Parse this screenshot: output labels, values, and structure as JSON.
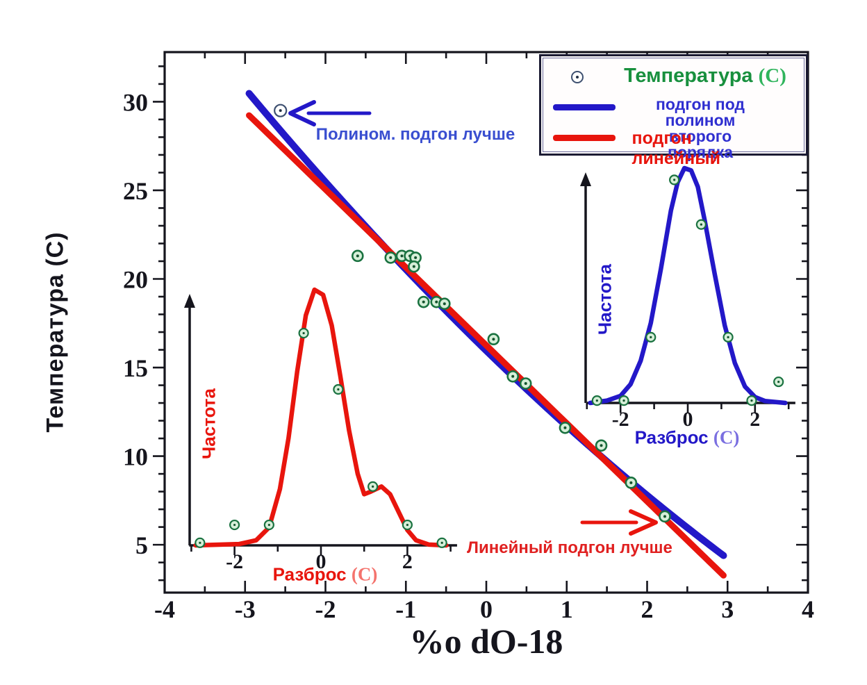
{
  "axes": {
    "xlabel": "%o dO-18",
    "ylabel": "Температура (C)"
  },
  "legend": {
    "temp_label": "Температура",
    "temp_unit": "(C)",
    "poly_label_line1": "подгон под полином",
    "poly_label_line2": "второго порядка",
    "linear_label": "подгон линейный"
  },
  "annotations": {
    "poly_better": "Полином. подгон лучше",
    "linear_better": "Линейный подгон лучше"
  },
  "colors": {
    "blue": "#2318c8",
    "red": "#e8150d",
    "green_text": "#18903e",
    "green_bright": "#2fb45c",
    "marker_fill": "#d6efd8",
    "marker_stroke": "#1a7240",
    "marker_dot": "#14532d",
    "open_marker_stroke": "#3e5070",
    "axis": "#15151d",
    "annotation_blue": "#3a4fd0",
    "annotation_red": "#e02020",
    "inset_unit_red": "#f4736d",
    "inset_unit_blue": "#7a6fe0"
  },
  "chart_data": {
    "type": "scatter",
    "title": "",
    "xlabel": "%o dO-18",
    "ylabel": "Температура (C)",
    "xlim": [
      -4,
      4
    ],
    "ylim": [
      2.3,
      32.8
    ],
    "x_ticks": [
      -4,
      -3,
      -2,
      -1,
      0,
      1,
      2,
      3,
      4
    ],
    "y_ticks": [
      5,
      10,
      15,
      20,
      25,
      30
    ],
    "grid": false,
    "legend_position": "top-right",
    "series": [
      {
        "name": "Температура (C)",
        "type": "scatter",
        "points": [
          [
            -2.56,
            29.5
          ],
          [
            -1.6,
            21.3
          ],
          [
            -1.19,
            21.2
          ],
          [
            -1.05,
            21.3
          ],
          [
            -0.95,
            21.3
          ],
          [
            -0.88,
            21.2
          ],
          [
            -0.9,
            20.7
          ],
          [
            -0.78,
            18.7
          ],
          [
            -0.62,
            18.7
          ],
          [
            -0.52,
            18.6
          ],
          [
            0.09,
            16.6
          ],
          [
            0.33,
            14.5
          ],
          [
            0.49,
            14.1
          ],
          [
            0.98,
            11.6
          ],
          [
            1.43,
            10.6
          ],
          [
            1.8,
            8.5
          ],
          [
            2.22,
            6.6
          ]
        ],
        "open_marker_indices": [
          0
        ]
      },
      {
        "name": "подгон под полином второго порядка",
        "type": "line",
        "fit": "poly2",
        "coeffs": [
          15.95,
          -4.42,
          0.17
        ],
        "x_range": [
          -2.95,
          2.95
        ]
      },
      {
        "name": "подгон линейный",
        "type": "line",
        "fit": "linear",
        "coeffs": [
          16.25,
          -4.4
        ],
        "x_range": [
          -2.95,
          2.95
        ]
      }
    ],
    "insets": [
      {
        "id": "linear-fit-residuals",
        "ylabel": "Частота",
        "xlabel": "Разброс",
        "xlabel_unit": "(C)",
        "x_ticks": [
          -2,
          0,
          2
        ],
        "curve": [
          [
            -2.9,
            0
          ],
          [
            -1.9,
            0.005
          ],
          [
            -1.5,
            0.02
          ],
          [
            -1.2,
            0.07
          ],
          [
            -0.95,
            0.22
          ],
          [
            -0.75,
            0.42
          ],
          [
            -0.55,
            0.68
          ],
          [
            -0.35,
            0.9
          ],
          [
            -0.15,
            1.0
          ],
          [
            0.05,
            0.98
          ],
          [
            0.25,
            0.86
          ],
          [
            0.45,
            0.66
          ],
          [
            0.65,
            0.45
          ],
          [
            0.85,
            0.28
          ],
          [
            1.0,
            0.2
          ],
          [
            1.15,
            0.21
          ],
          [
            1.4,
            0.23
          ],
          [
            1.6,
            0.2
          ],
          [
            1.8,
            0.13
          ],
          [
            2.0,
            0.06
          ],
          [
            2.2,
            0.02
          ],
          [
            2.5,
            0.003
          ],
          [
            2.9,
            0
          ]
        ],
        "points": [
          [
            -2.8,
            0.01
          ],
          [
            -2.0,
            0.08
          ],
          [
            -1.2,
            0.08
          ],
          [
            -0.4,
            0.83
          ],
          [
            0.4,
            0.61
          ],
          [
            1.2,
            0.23
          ],
          [
            2.0,
            0.08
          ],
          [
            2.8,
            0.01
          ]
        ]
      },
      {
        "id": "poly-fit-residuals",
        "ylabel": "Частота",
        "xlabel": "Разброс",
        "xlabel_unit": "(C)",
        "x_ticks": [
          -2,
          0,
          2
        ],
        "curve": [
          [
            -2.9,
            0
          ],
          [
            -2.4,
            0.01
          ],
          [
            -2.0,
            0.03
          ],
          [
            -1.7,
            0.08
          ],
          [
            -1.4,
            0.18
          ],
          [
            -1.1,
            0.34
          ],
          [
            -0.8,
            0.57
          ],
          [
            -0.5,
            0.82
          ],
          [
            -0.3,
            0.94
          ],
          [
            -0.1,
            1.0
          ],
          [
            0.1,
            0.99
          ],
          [
            0.3,
            0.92
          ],
          [
            0.5,
            0.78
          ],
          [
            0.8,
            0.55
          ],
          [
            1.1,
            0.33
          ],
          [
            1.4,
            0.17
          ],
          [
            1.7,
            0.07
          ],
          [
            2.0,
            0.025
          ],
          [
            2.3,
            0.008
          ],
          [
            2.9,
            0
          ]
        ],
        "points": [
          [
            -2.7,
            0.01
          ],
          [
            -1.9,
            0.01
          ],
          [
            -1.1,
            0.28
          ],
          [
            -0.4,
            0.95
          ],
          [
            0.4,
            0.76
          ],
          [
            1.2,
            0.28
          ],
          [
            1.9,
            0.01
          ],
          [
            2.7,
            0.09
          ]
        ]
      }
    ]
  }
}
